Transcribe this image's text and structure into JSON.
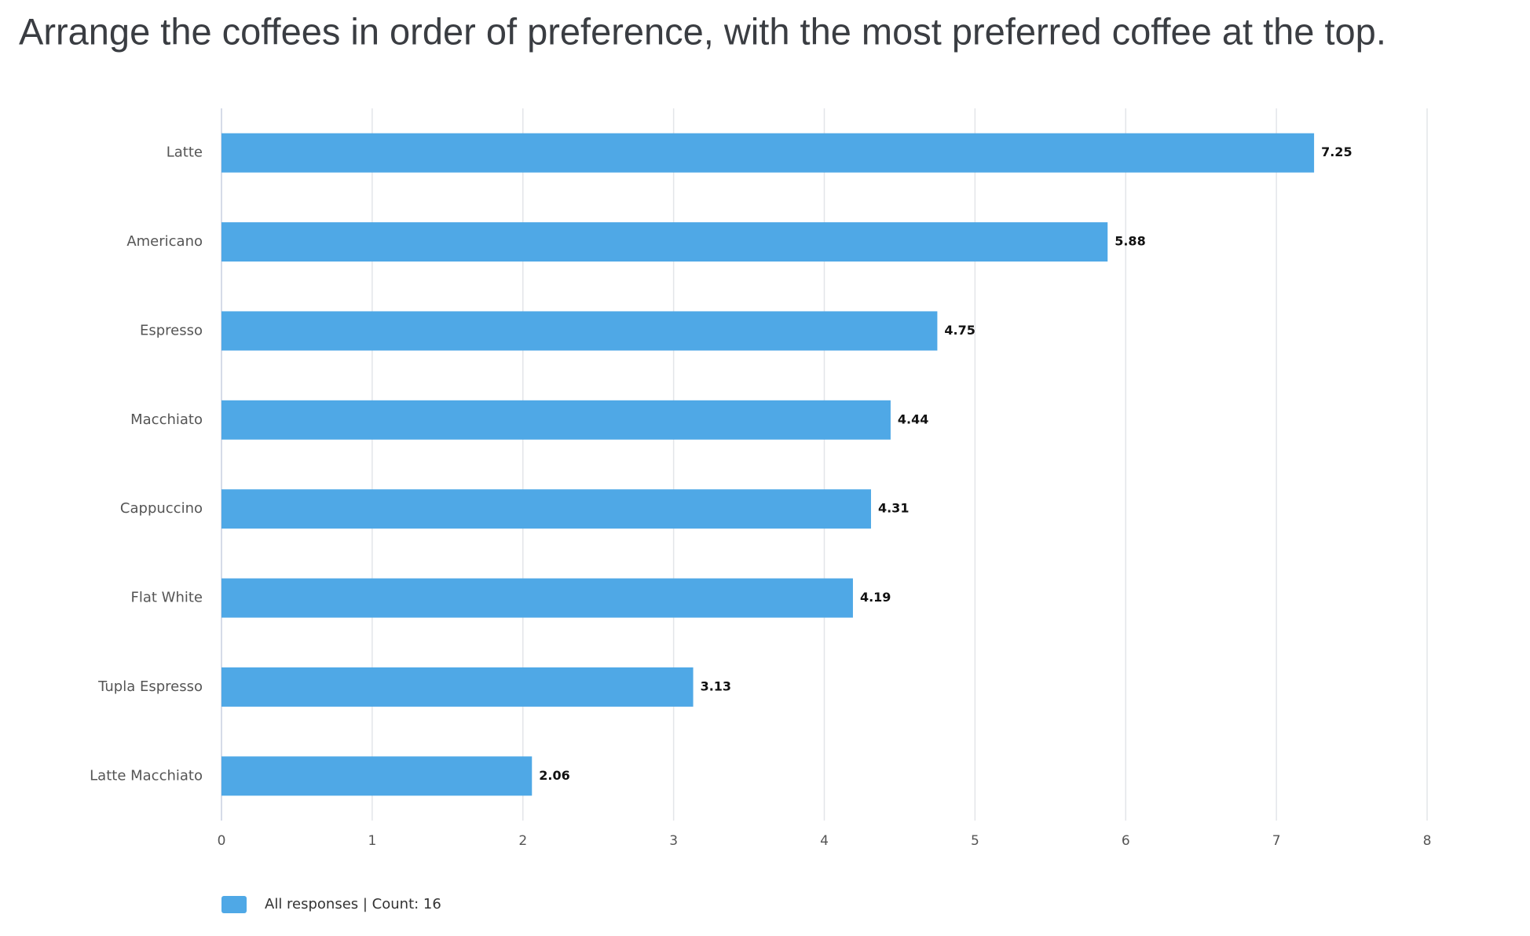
{
  "chart_data": {
    "type": "bar",
    "orientation": "horizontal",
    "title": "Arrange the coffees in order of preference, with the most preferred coffee at the top.",
    "categories": [
      "Latte",
      "Americano",
      "Espresso",
      "Macchiato",
      "Cappuccino",
      "Flat White",
      "Tupla Espresso",
      "Latte Macchiato"
    ],
    "series": [
      {
        "name": "All responses | Count: 16",
        "color": "#4fa8e6",
        "values": [
          7.25,
          5.88,
          4.75,
          4.44,
          4.31,
          4.19,
          3.13,
          2.06
        ]
      }
    ],
    "xlim": [
      0,
      8
    ],
    "xticks": [
      0,
      1,
      2,
      3,
      4,
      5,
      6,
      7,
      8
    ],
    "grid": true,
    "legend": "bottom-left"
  }
}
